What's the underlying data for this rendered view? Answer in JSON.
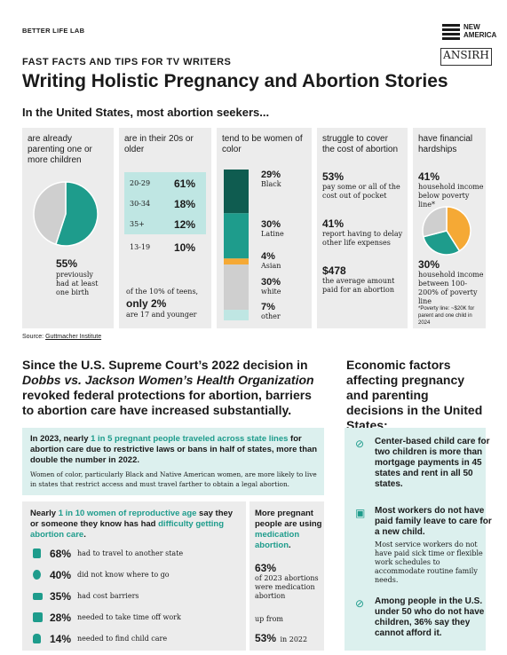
{
  "header": {
    "lab": "BETTER LIFE LAB",
    "na_logo": "NEW AMERICA",
    "ansirh_logo": "ANSIRH",
    "kicker": "FAST FACTS AND TIPS FOR TV WRITERS",
    "title": "Writing Holistic Pregnancy and Abortion Stories",
    "subtitle": "In the United States, most abortion seekers..."
  },
  "colors": {
    "teal": "#1e9c8c",
    "dark_teal": "#0f5c50",
    "orange": "#f5a935",
    "light_gray": "#cfcfcf",
    "light_teal": "#bfe6e3",
    "panel": "#ececec"
  },
  "panels": {
    "p1": {
      "title": "are already parenting one or more children",
      "pct": "55%",
      "desc": "previously had at least one birth"
    },
    "p2": {
      "title": "are in their 20s or older",
      "rows": [
        {
          "range": "20-29",
          "value": "61%"
        },
        {
          "range": "30-34",
          "value": "18%"
        },
        {
          "range": "35+",
          "value": "12%"
        },
        {
          "range": "13-19",
          "value": "10%"
        }
      ],
      "teens_note": "of the 10% of teens,",
      "teens_pct": "only 2%",
      "teens_tail": "are 17 and younger"
    },
    "p3": {
      "title": "tend to be women of color",
      "rows": [
        {
          "value": "29%",
          "label": "Black"
        },
        {
          "value": "30%",
          "label": "Latine"
        },
        {
          "value": "4%",
          "label": "Asian"
        },
        {
          "value": "30%",
          "label": "white"
        },
        {
          "value": "7%",
          "label": "other"
        }
      ]
    },
    "p4": {
      "title": "struggle to cover the cost of abortion",
      "s1_value": "53%",
      "s1_text": "pay some or all of the cost out of pocket",
      "s2_value": "41%",
      "s2_text": "report having to delay other life expenses",
      "s3_value": "$478",
      "s3_text": "the average amount paid for an abortion"
    },
    "p5": {
      "title": "have financial hardships",
      "s1_value": "41%",
      "s1_text": "household income below poverty line*",
      "s2_value": "30%",
      "s2_text": "household income between 100-200% of poverty line",
      "footnote": "*Poverty line: ~$20K for parent and one child in 2024"
    }
  },
  "source_label": "Source:",
  "source_link": "Guttmacher Institute",
  "sec2": {
    "t1": "Since the U.S. Supreme Court’s 2022 decision in",
    "t2": "Dobbs vs. Jackson Women’s Health Organization",
    "t3": "revoked federal protections for abortion, barriers to abortion care have increased substantially.",
    "box1": {
      "a": "In 2023, nearly ",
      "b": "1 in 5 pregnant people traveled across state lines",
      "c": " for abortion care due to restrictive laws or bans in half of states, more than double the number in 2022.",
      "note": "Women of color, particularly Black and Native American women, are more likely to live in states that restrict access and must travel farther to obtain a legal abortion."
    },
    "box2": {
      "a": "Nearly ",
      "b": "1 in 10 women of reproductive age",
      "c": " say they or someone they know has had ",
      "d": "difficulty getting abortion care",
      "e": ".",
      "stats": [
        {
          "value": "68%",
          "text": "had to travel to another state"
        },
        {
          "value": "40%",
          "text": "did not know where to go"
        },
        {
          "value": "35%",
          "text": "had cost barriers"
        },
        {
          "value": "28%",
          "text": "needed to take time off work"
        },
        {
          "value": "14%",
          "text": "needed to find child care"
        }
      ]
    },
    "box3": {
      "a": "More pregnant people are using ",
      "b": "medication abortion",
      "c": ".",
      "v1": "63%",
      "t1": "of 2023 abortions were medication abortion",
      "t2": "up from",
      "v2": "53%",
      "t3": "in 2022"
    }
  },
  "econ": {
    "title": "Economic factors affecting pregnancy and parenting decisions in the United States:",
    "items": [
      {
        "icon": "no-stroller-icon",
        "head": "Center-based child care for two children is more than mortgage payments in 45 states and rent in all 50 states.",
        "body": ""
      },
      {
        "icon": "calendar-x-icon",
        "head": "Most workers do not have paid family leave to care for a new child.",
        "body": "Most service workers do not have paid sick time or flexible work schedules to accommodate routine family needs."
      },
      {
        "icon": "no-money-icon",
        "head": "Among people in the U.S. under 50 who do not have children, 36% say they cannot afford it.",
        "body": ""
      }
    ]
  },
  "chart_data": [
    {
      "type": "pie",
      "categories": [
        "previously had at least one birth",
        "other"
      ],
      "values": [
        55,
        45
      ]
    },
    {
      "type": "bar",
      "categories": [
        "Black",
        "Latine",
        "Asian",
        "white",
        "other"
      ],
      "values": [
        29,
        30,
        4,
        30,
        7
      ]
    },
    {
      "type": "pie",
      "categories": [
        "below poverty line",
        "100-200% of poverty line",
        "other"
      ],
      "values": [
        41,
        30,
        29
      ]
    }
  ]
}
